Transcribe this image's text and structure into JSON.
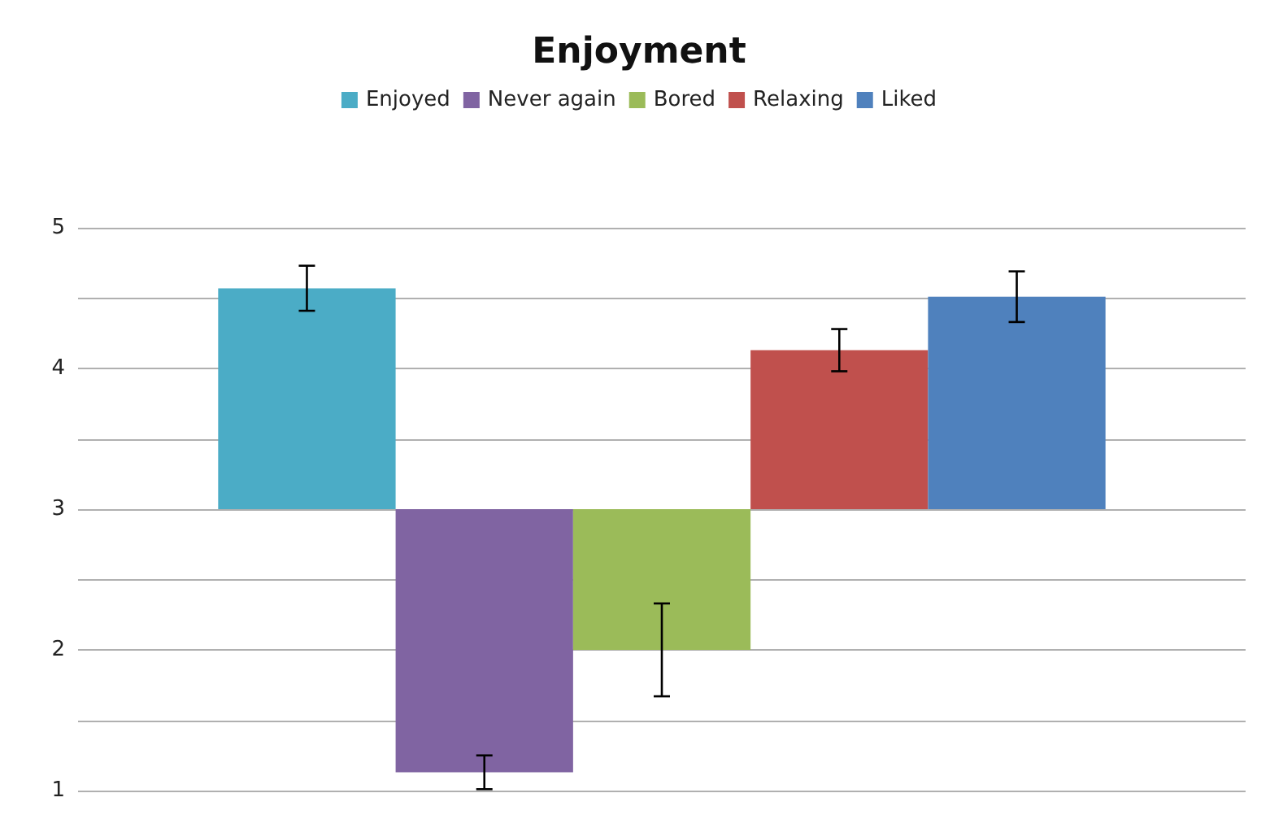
{
  "chart_data": {
    "type": "bar",
    "title": "Enjoyment",
    "categories": [
      null
    ],
    "series": [
      {
        "name": "Enjoyed",
        "color": "#4bacc6",
        "base": [
          3
        ],
        "values": [
          1.57
        ],
        "errors": [
          0.16
        ]
      },
      {
        "name": "Never again",
        "color": "#8064a2",
        "base": [
          3
        ],
        "values": [
          -1.87
        ],
        "errors": [
          0.12
        ]
      },
      {
        "name": "Bored",
        "color": "#9bbb59",
        "base": [
          3
        ],
        "values": [
          -1.0
        ],
        "errors": [
          0.33
        ]
      },
      {
        "name": "Relaxing",
        "color": "#c0504d",
        "base": [
          3
        ],
        "values": [
          1.13
        ],
        "errors": [
          0.15
        ]
      },
      {
        "name": "Liked",
        "color": "#4f81bd",
        "base": [
          3
        ],
        "values": [
          1.51
        ],
        "errors": [
          0.18
        ]
      }
    ],
    "ylim": [
      1,
      5
    ],
    "yticks": [
      1,
      {
        "value": 1.5,
        "label": null
      },
      2,
      {
        "value": 2.5,
        "label": null
      },
      3,
      {
        "value": 3.5,
        "label": null
      },
      4,
      {
        "value": 4.5,
        "label": null
      },
      5
    ],
    "grid": true,
    "legend": "top"
  }
}
